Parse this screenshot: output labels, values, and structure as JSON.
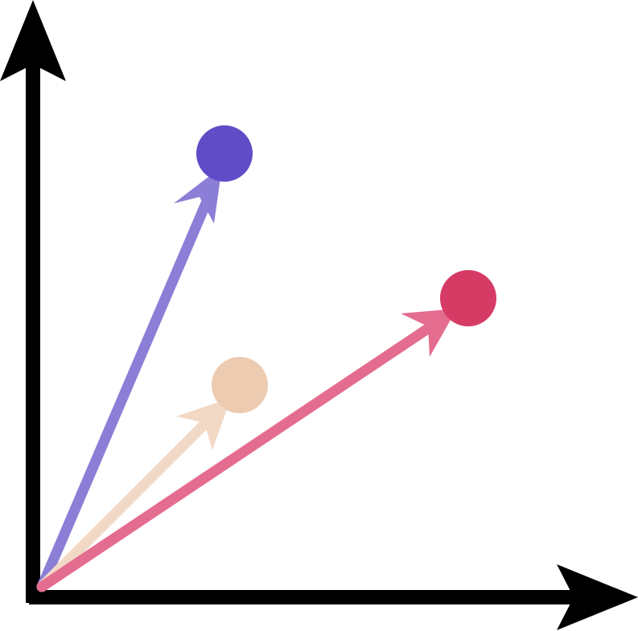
{
  "diagram": {
    "axes": {
      "color": "#000000"
    },
    "vectors": [
      {
        "id": "purple",
        "arrow_color": "#8b7ed6",
        "point_color": "#604cc7"
      },
      {
        "id": "peach",
        "arrow_color": "#f2d9c6",
        "point_color": "#edcbb1"
      },
      {
        "id": "pink",
        "arrow_color": "#e46c8f",
        "point_color": "#d63b66"
      }
    ]
  }
}
